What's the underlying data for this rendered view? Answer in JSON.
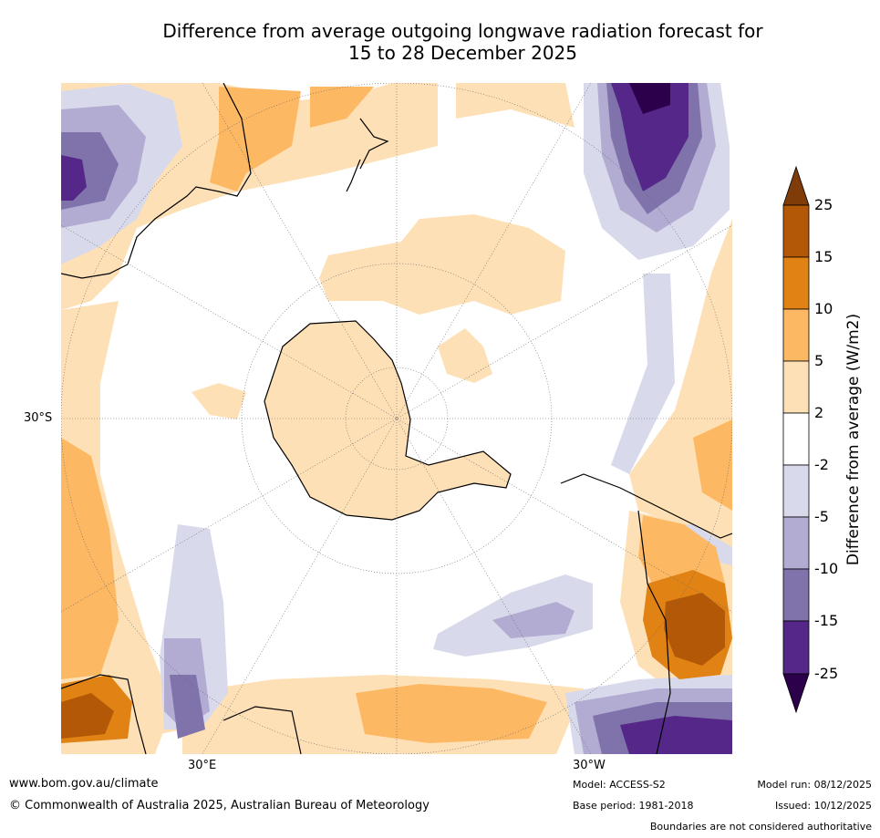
{
  "title": {
    "line1": "Difference from average outgoing longwave radiation forecast for",
    "line2": "15 to 28 December 2025"
  },
  "axes": {
    "lat_label": "30°S",
    "lon_labels": [
      "30°E",
      "30°W"
    ]
  },
  "colorbar": {
    "title": "Difference from average (W/m2)",
    "ticks": [
      "25",
      "15",
      "10",
      "5",
      "2",
      "-2",
      "-5",
      "-10",
      "-15",
      "-25"
    ],
    "colors": {
      "pos_extreme": "#7f3b08",
      "pos_15_25": "#b35806",
      "pos_10_15": "#e08214",
      "pos_5_10": "#fdb863",
      "pos_2_5": "#fee0b6",
      "neutral": "#ffffff",
      "neg_2_5": "#d8daeb",
      "neg_5_10": "#b2abd2",
      "neg_10_15": "#8073ac",
      "neg_15_25": "#542788",
      "neg_extreme": "#2d004b"
    }
  },
  "footer": {
    "website": "www.bom.gov.au/climate",
    "copyright": "© Commonwealth of Australia 2025, Australian Bureau of Meteorology",
    "model": "Model: ACCESS-S2",
    "base_period": "Base period: 1981-2018",
    "model_run": "Model run: 08/12/2025",
    "issued": "Issued: 10/12/2025",
    "disclaimer": "Boundaries are not considered authoritative"
  }
}
